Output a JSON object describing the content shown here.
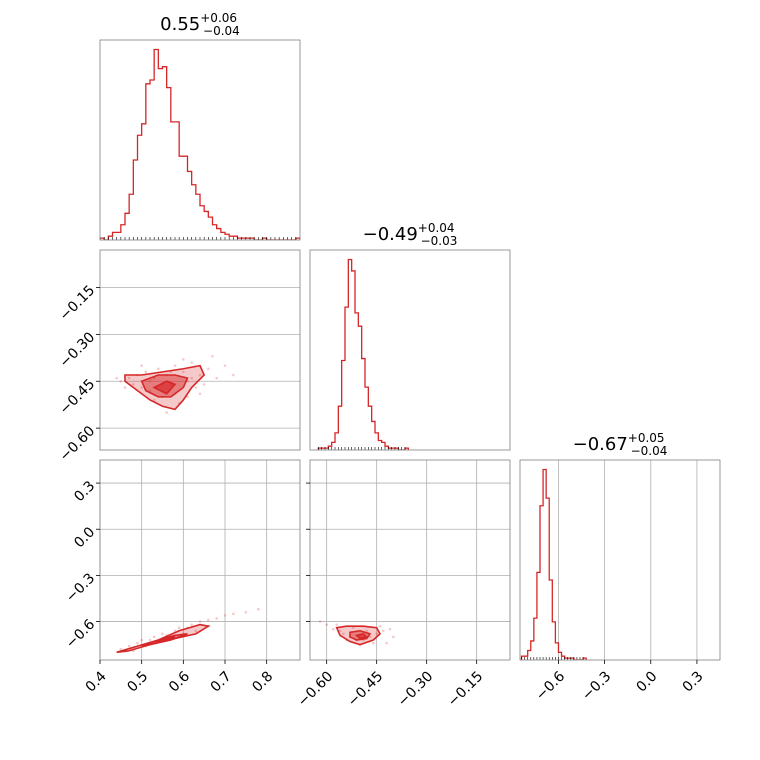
{
  "chart_data": {
    "type": "corner",
    "color": "#d62728",
    "grid": true,
    "panels": [
      {
        "id": "hist-0",
        "row": 0,
        "col": 0,
        "type": "histogram",
        "title": {
          "main": "0.55",
          "sup": "+0.06",
          "sub": "−0.04"
        },
        "xlim": [
          0.4,
          0.88
        ],
        "ymax": 1.0,
        "bins_x": [
          0.4,
          0.41,
          0.42,
          0.43,
          0.44,
          0.45,
          0.46,
          0.47,
          0.48,
          0.49,
          0.5,
          0.51,
          0.52,
          0.53,
          0.54,
          0.55,
          0.56,
          0.57,
          0.58,
          0.59,
          0.6,
          0.61,
          0.62,
          0.63,
          0.64,
          0.65,
          0.66,
          0.67,
          0.68,
          0.69,
          0.7,
          0.71,
          0.72,
          0.73,
          0.74,
          0.75,
          0.76,
          0.77,
          0.78,
          0.79,
          0.8,
          0.81,
          0.82,
          0.83,
          0.84,
          0.85,
          0.86,
          0.87,
          0.88
        ],
        "counts": [
          0.01,
          0,
          0.02,
          0.04,
          0.04,
          0.08,
          0.14,
          0.24,
          0.42,
          0.55,
          0.61,
          0.82,
          0.84,
          1.0,
          0.9,
          0.91,
          0.8,
          0.62,
          0.62,
          0.44,
          0.44,
          0.36,
          0.29,
          0.24,
          0.18,
          0.15,
          0.12,
          0.08,
          0.06,
          0.04,
          0.03,
          0.02,
          0.02,
          0.01,
          0.01,
          0.01,
          0.01,
          0,
          0,
          0.01,
          0,
          0,
          0,
          0,
          0,
          0,
          0,
          0.01
        ],
        "xticks": [],
        "yticks": []
      },
      {
        "id": "hist-1",
        "row": 1,
        "col": 1,
        "type": "histogram",
        "title": {
          "main": "−0.49",
          "sup": "+0.04",
          "sub": "−0.03"
        },
        "xlim": [
          -0.65,
          -0.05
        ],
        "ymax": 1.0,
        "bins_x": [
          -0.625,
          -0.615,
          -0.605,
          -0.595,
          -0.585,
          -0.575,
          -0.565,
          -0.555,
          -0.545,
          -0.535,
          -0.525,
          -0.515,
          -0.505,
          -0.495,
          -0.485,
          -0.475,
          -0.465,
          -0.455,
          -0.445,
          -0.435,
          -0.425,
          -0.415,
          -0.405,
          -0.395,
          -0.385,
          -0.375,
          -0.365
        ],
        "counts": [
          0.01,
          0.01,
          0.01,
          0.02,
          0.04,
          0.09,
          0.23,
          0.47,
          0.75,
          1.0,
          0.94,
          0.72,
          0.65,
          0.48,
          0.33,
          0.23,
          0.15,
          0.09,
          0.05,
          0.04,
          0.02,
          0.01,
          0.01,
          0.01,
          0,
          0,
          0.01
        ],
        "xticks": [],
        "yticks": []
      },
      {
        "id": "hist-2",
        "row": 2,
        "col": 2,
        "type": "histogram",
        "title": {
          "main": "−0.67",
          "sup": "+0.05",
          "sub": "−0.04"
        },
        "xlim": [
          -0.85,
          0.45
        ],
        "ymax": 1.0,
        "bins_x": [
          -0.84,
          -0.82,
          -0.8,
          -0.78,
          -0.76,
          -0.74,
          -0.72,
          -0.7,
          -0.68,
          -0.66,
          -0.64,
          -0.62,
          -0.6,
          -0.58,
          -0.56,
          -0.54,
          -0.52,
          -0.5,
          -0.48,
          -0.46,
          -0.44
        ],
        "counts": [
          0.02,
          0.02,
          0.05,
          0.1,
          0.22,
          0.46,
          0.81,
          1.0,
          0.85,
          0.42,
          0.2,
          0.09,
          0.04,
          0.02,
          0.01,
          0.01,
          0.01,
          0,
          0,
          0,
          0.01
        ],
        "xticks": [
          -0.6,
          -0.3,
          0.0,
          0.3
        ],
        "xtick_labels": [
          "−0.6",
          "−0.3",
          "0.0",
          "0.3"
        ]
      },
      {
        "id": "scatter-1-0",
        "row": 1,
        "col": 0,
        "type": "scatter-contour",
        "xlim": [
          0.4,
          0.88
        ],
        "ylim": [
          -0.67,
          -0.03
        ],
        "points": [
          [
            0.45,
            -0.45
          ],
          [
            0.47,
            -0.44
          ],
          [
            0.48,
            -0.46
          ],
          [
            0.49,
            -0.43
          ],
          [
            0.5,
            -0.47
          ],
          [
            0.51,
            -0.42
          ],
          [
            0.52,
            -0.48
          ],
          [
            0.53,
            -0.44
          ],
          [
            0.54,
            -0.41
          ],
          [
            0.55,
            -0.5
          ],
          [
            0.56,
            -0.43
          ],
          [
            0.57,
            -0.46
          ],
          [
            0.58,
            -0.4
          ],
          [
            0.59,
            -0.52
          ],
          [
            0.6,
            -0.42
          ],
          [
            0.61,
            -0.45
          ],
          [
            0.62,
            -0.39
          ],
          [
            0.63,
            -0.47
          ],
          [
            0.64,
            -0.43
          ],
          [
            0.66,
            -0.41
          ],
          [
            0.68,
            -0.44
          ],
          [
            0.46,
            -0.47
          ],
          [
            0.52,
            -0.45
          ],
          [
            0.55,
            -0.46
          ],
          [
            0.58,
            -0.49
          ],
          [
            0.62,
            -0.44
          ],
          [
            0.65,
            -0.46
          ],
          [
            0.53,
            -0.51
          ],
          [
            0.57,
            -0.42
          ],
          [
            0.61,
            -0.5
          ],
          [
            0.7,
            -0.4
          ],
          [
            0.72,
            -0.43
          ],
          [
            0.44,
            -0.44
          ],
          [
            0.6,
            -0.38
          ],
          [
            0.56,
            -0.55
          ],
          [
            0.5,
            -0.4
          ],
          [
            0.67,
            -0.37
          ],
          [
            0.64,
            -0.49
          ]
        ],
        "contours": [
          [
            [
              0.46,
              -0.43
            ],
            [
              0.5,
              -0.43
            ],
            [
              0.55,
              -0.42
            ],
            [
              0.6,
              -0.41
            ],
            [
              0.64,
              -0.4
            ],
            [
              0.65,
              -0.43
            ],
            [
              0.62,
              -0.47
            ],
            [
              0.6,
              -0.51
            ],
            [
              0.58,
              -0.54
            ],
            [
              0.55,
              -0.53
            ],
            [
              0.52,
              -0.51
            ],
            [
              0.49,
              -0.48
            ],
            [
              0.46,
              -0.45
            ]
          ],
          [
            [
              0.5,
              -0.45
            ],
            [
              0.54,
              -0.43
            ],
            [
              0.58,
              -0.43
            ],
            [
              0.61,
              -0.44
            ],
            [
              0.6,
              -0.47
            ],
            [
              0.57,
              -0.5
            ],
            [
              0.54,
              -0.5
            ],
            [
              0.51,
              -0.48
            ]
          ],
          [
            [
              0.53,
              -0.47
            ],
            [
              0.56,
              -0.45
            ],
            [
              0.58,
              -0.46
            ],
            [
              0.56,
              -0.49
            ]
          ]
        ],
        "yticks": [
          -0.6,
          -0.45,
          -0.3,
          -0.15
        ],
        "ytick_labels": [
          "−0.60",
          "−0.45",
          "−0.30",
          "−0.15"
        ]
      },
      {
        "id": "scatter-2-0",
        "row": 2,
        "col": 0,
        "type": "scatter-contour",
        "xlim": [
          0.4,
          0.88
        ],
        "ylim": [
          -0.85,
          0.45
        ],
        "points": [
          [
            0.45,
            -0.78
          ],
          [
            0.47,
            -0.76
          ],
          [
            0.49,
            -0.74
          ],
          [
            0.5,
            -0.72
          ],
          [
            0.52,
            -0.72
          ],
          [
            0.53,
            -0.7
          ],
          [
            0.55,
            -0.68
          ],
          [
            0.56,
            -0.69
          ],
          [
            0.58,
            -0.66
          ],
          [
            0.59,
            -0.64
          ],
          [
            0.61,
            -0.64
          ],
          [
            0.62,
            -0.62
          ],
          [
            0.64,
            -0.6
          ],
          [
            0.66,
            -0.59
          ],
          [
            0.68,
            -0.58
          ],
          [
            0.7,
            -0.56
          ],
          [
            0.72,
            -0.55
          ],
          [
            0.54,
            -0.73
          ],
          [
            0.57,
            -0.7
          ],
          [
            0.6,
            -0.68
          ],
          [
            0.63,
            -0.66
          ],
          [
            0.51,
            -0.76
          ],
          [
            0.48,
            -0.79
          ],
          [
            0.66,
            -0.63
          ],
          [
            0.75,
            -0.54
          ],
          [
            0.78,
            -0.52
          ]
        ],
        "contours": [
          [
            [
              0.44,
              -0.8
            ],
            [
              0.49,
              -0.76
            ],
            [
              0.54,
              -0.72
            ],
            [
              0.59,
              -0.66
            ],
            [
              0.64,
              -0.62
            ],
            [
              0.66,
              -0.63
            ],
            [
              0.63,
              -0.68
            ],
            [
              0.58,
              -0.71
            ],
            [
              0.52,
              -0.75
            ],
            [
              0.47,
              -0.79
            ]
          ],
          [
            [
              0.5,
              -0.76
            ],
            [
              0.54,
              -0.72
            ],
            [
              0.58,
              -0.69
            ],
            [
              0.61,
              -0.68
            ],
            [
              0.57,
              -0.72
            ],
            [
              0.52,
              -0.75
            ]
          ],
          [
            [
              0.53,
              -0.73
            ],
            [
              0.56,
              -0.71
            ],
            [
              0.58,
              -0.7
            ],
            [
              0.55,
              -0.73
            ]
          ]
        ],
        "xticks": [
          0.4,
          0.5,
          0.6,
          0.7,
          0.8
        ],
        "xtick_labels": [
          "0.4",
          "0.5",
          "0.6",
          "0.7",
          "0.8"
        ],
        "yticks": [
          -0.6,
          -0.3,
          0.0,
          0.3
        ],
        "ytick_labels": [
          "−0.6",
          "−0.3",
          "0.0",
          "0.3"
        ]
      },
      {
        "id": "scatter-2-1",
        "row": 2,
        "col": 1,
        "type": "scatter-contour",
        "xlim": [
          -0.65,
          -0.05
        ],
        "ylim": [
          -0.85,
          0.45
        ],
        "points": [
          [
            -0.62,
            -0.6
          ],
          [
            -0.6,
            -0.62
          ],
          [
            -0.58,
            -0.65
          ],
          [
            -0.56,
            -0.66
          ],
          [
            -0.55,
            -0.68
          ],
          [
            -0.53,
            -0.7
          ],
          [
            -0.51,
            -0.72
          ],
          [
            -0.49,
            -0.72
          ],
          [
            -0.47,
            -0.7
          ],
          [
            -0.45,
            -0.68
          ],
          [
            -0.43,
            -0.66
          ],
          [
            -0.41,
            -0.65
          ],
          [
            -0.54,
            -0.72
          ],
          [
            -0.5,
            -0.75
          ],
          [
            -0.46,
            -0.74
          ],
          [
            -0.44,
            -0.63
          ],
          [
            -0.52,
            -0.64
          ],
          [
            -0.48,
            -0.66
          ],
          [
            -0.4,
            -0.7
          ],
          [
            -0.57,
            -0.62
          ],
          [
            -0.42,
            -0.74
          ]
        ],
        "contours": [
          [
            [
              -0.57,
              -0.64
            ],
            [
              -0.54,
              -0.63
            ],
            [
              -0.49,
              -0.63
            ],
            [
              -0.45,
              -0.64
            ],
            [
              -0.44,
              -0.68
            ],
            [
              -0.46,
              -0.72
            ],
            [
              -0.5,
              -0.75
            ],
            [
              -0.53,
              -0.73
            ],
            [
              -0.56,
              -0.69
            ]
          ],
          [
            [
              -0.53,
              -0.67
            ],
            [
              -0.5,
              -0.66
            ],
            [
              -0.47,
              -0.68
            ],
            [
              -0.48,
              -0.71
            ],
            [
              -0.51,
              -0.72
            ],
            [
              -0.53,
              -0.7
            ]
          ],
          [
            [
              -0.51,
              -0.69
            ],
            [
              -0.49,
              -0.68
            ],
            [
              -0.48,
              -0.7
            ],
            [
              -0.5,
              -0.71
            ]
          ]
        ],
        "xticks": [
          -0.6,
          -0.45,
          -0.3,
          -0.15
        ],
        "xtick_labels": [
          "−0.60",
          "−0.45",
          "−0.30",
          "−0.15"
        ],
        "yticks": [
          -0.6,
          -0.3,
          0.0,
          0.3
        ]
      }
    ]
  }
}
